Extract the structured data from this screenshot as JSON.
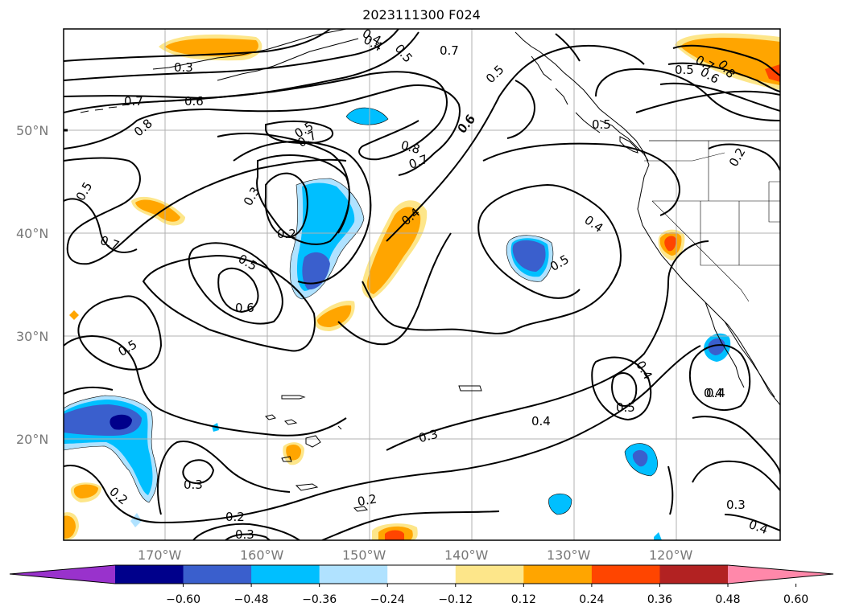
{
  "title": "2023111300 F024",
  "lat_labels": [
    "50°N",
    "40°N",
    "30°N",
    "20°N"
  ],
  "lon_labels": [
    "170°W",
    "160°W",
    "150°W",
    "140°W",
    "130°W",
    "120°W"
  ],
  "contour_labels": [
    "0.3",
    "0.7",
    "0.6",
    "0.8",
    "0.4",
    "0.5",
    "0.7",
    "0.5",
    "0.6",
    "0.5",
    "0.8",
    "0.7",
    "0.3",
    "0.2",
    "0.5",
    "0.6",
    "0.4",
    "0.4",
    "0.5",
    "0.5",
    "0.5",
    "0.7",
    "0.5",
    "0.3",
    "0.2",
    "0.3",
    "0.2",
    "0.3",
    "0.4",
    "0.4",
    "0.5",
    "0.4",
    "0.4",
    "0.3",
    "0.4",
    "0.2",
    "0.5",
    "0.7",
    "0.6",
    "0.8",
    "0.2",
    "0.4",
    "0.7",
    "0.6"
  ],
  "colorbar": {
    "ticks": [
      "−0.60",
      "−0.48",
      "−0.36",
      "−0.24",
      "−0.12",
      "0.12",
      "0.24",
      "0.36",
      "0.48",
      "0.60"
    ],
    "colors": [
      "#9932cc",
      "#00008b",
      "#3a5fcd",
      "#00bfff",
      "#b0e2ff",
      "#ffffff",
      "#fde68a",
      "#ffa500",
      "#ff4500",
      "#b22222",
      "#ff88aa"
    ]
  },
  "field_colors": {
    "light_blue": "#b0e2ff",
    "sky_blue": "#00bfff",
    "royal_blue": "#3a5fcd",
    "navy": "#00008b",
    "yellow": "#fde68a",
    "orange": "#ffa500",
    "red_orange": "#ff4500"
  }
}
